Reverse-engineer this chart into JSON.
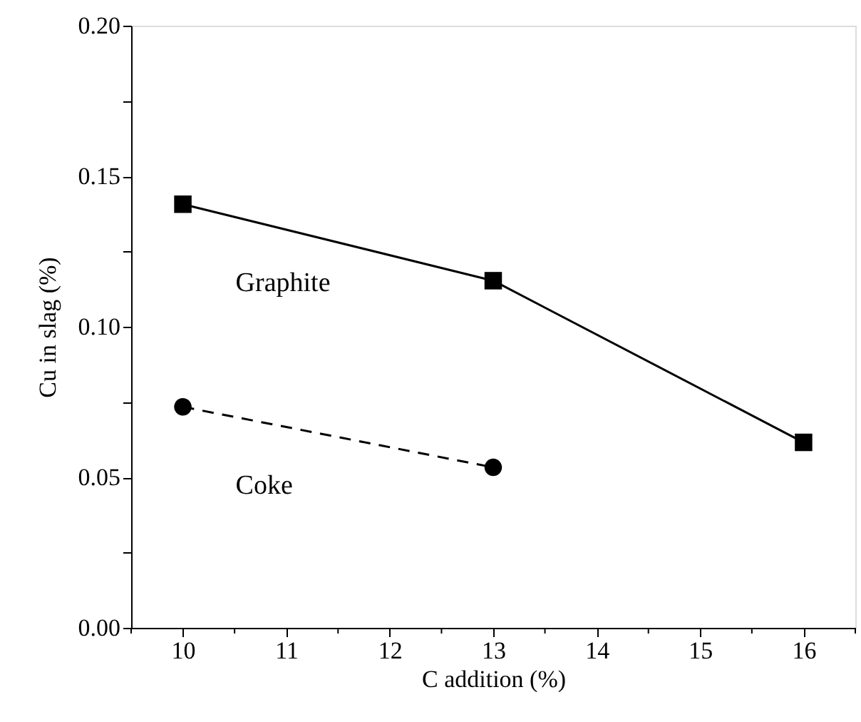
{
  "chart_data": {
    "type": "line",
    "xlabel": "C addition (%)",
    "ylabel": "Cu in slag (%)",
    "xlim": [
      9.5,
      16.5
    ],
    "xticks": [
      {
        "value": 9.5,
        "label": null
      },
      10,
      {
        "value": 10.5,
        "label": null
      },
      11,
      {
        "value": 11.5,
        "label": null
      },
      12,
      {
        "value": 12.5,
        "label": null
      },
      13,
      {
        "value": 13.5,
        "label": null
      },
      14,
      {
        "value": 14.5,
        "label": null
      },
      15,
      {
        "value": 15.5,
        "label": null
      },
      16,
      {
        "value": 16.5,
        "label": null
      }
    ],
    "ylim": [
      0,
      0.2
    ],
    "yticks": [
      {
        "value": 0,
        "label": "0.00"
      },
      {
        "value": 0.025,
        "label": null
      },
      {
        "value": 0.05,
        "label": "0.05"
      },
      {
        "value": 0.075,
        "label": null
      },
      {
        "value": 0.1,
        "label": "0.10"
      },
      {
        "value": 0.125,
        "label": null
      },
      {
        "value": 0.15,
        "label": "0.15"
      },
      {
        "value": 0.175,
        "label": null
      },
      {
        "value": 0.2,
        "label": "0.20"
      }
    ],
    "grid": false,
    "series": [
      {
        "name": "Graphite",
        "color": "#000000",
        "marker": "square",
        "line_style": "solid",
        "x": [
          10,
          13,
          16
        ],
        "values": [
          0.1407,
          0.1153,
          0.0616
        ]
      },
      {
        "name": "Coke",
        "color": "#000000",
        "marker": "circle",
        "line_style": "dashed",
        "x": [
          10,
          13
        ],
        "values": [
          0.0734,
          0.0533
        ]
      }
    ]
  }
}
